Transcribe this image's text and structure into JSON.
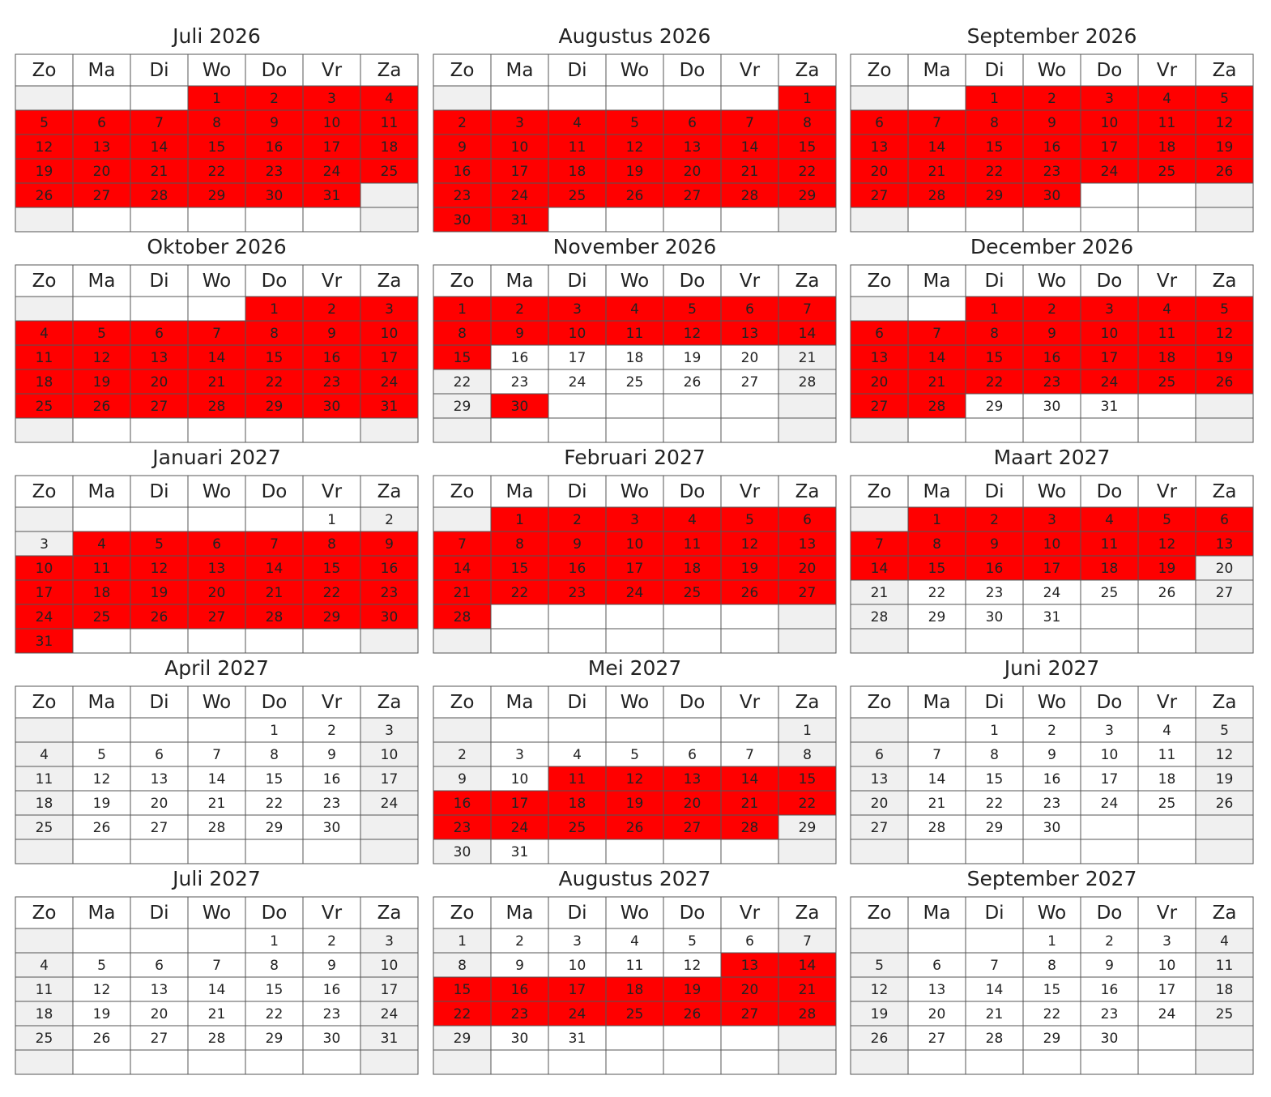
{
  "weekdays": [
    "Zo",
    "Ma",
    "Di",
    "Wo",
    "Do",
    "Vr",
    "Za"
  ],
  "months": [
    {
      "title": "Juli 2026",
      "booked": [
        [
          1,
          31
        ]
      ],
      "weeks": [
        [
          null,
          null,
          null,
          1,
          2,
          3,
          4
        ],
        [
          5,
          6,
          7,
          8,
          9,
          10,
          11
        ],
        [
          12,
          13,
          14,
          15,
          16,
          17,
          18
        ],
        [
          19,
          20,
          21,
          22,
          23,
          24,
          25
        ],
        [
          26,
          27,
          28,
          29,
          30,
          31,
          null
        ],
        [
          null,
          null,
          null,
          null,
          null,
          null,
          null
        ]
      ]
    },
    {
      "title": "Augustus 2026",
      "booked": [
        [
          1,
          31
        ]
      ],
      "weeks": [
        [
          null,
          null,
          null,
          null,
          null,
          null,
          1
        ],
        [
          2,
          3,
          4,
          5,
          6,
          7,
          8
        ],
        [
          9,
          10,
          11,
          12,
          13,
          14,
          15
        ],
        [
          16,
          17,
          18,
          19,
          20,
          21,
          22
        ],
        [
          23,
          24,
          25,
          26,
          27,
          28,
          29
        ],
        [
          30,
          31,
          null,
          null,
          null,
          null,
          null
        ]
      ]
    },
    {
      "title": "September 2026",
      "booked": [
        [
          1,
          30
        ]
      ],
      "weeks": [
        [
          null,
          null,
          1,
          2,
          3,
          4,
          5
        ],
        [
          6,
          7,
          8,
          9,
          10,
          11,
          12
        ],
        [
          13,
          14,
          15,
          16,
          17,
          18,
          19
        ],
        [
          20,
          21,
          22,
          23,
          24,
          25,
          26
        ],
        [
          27,
          28,
          29,
          30,
          null,
          null,
          null
        ],
        [
          null,
          null,
          null,
          null,
          null,
          null,
          null
        ]
      ]
    },
    {
      "title": "Oktober 2026",
      "booked": [
        [
          1,
          31
        ]
      ],
      "weeks": [
        [
          null,
          null,
          null,
          null,
          1,
          2,
          3
        ],
        [
          4,
          5,
          6,
          7,
          8,
          9,
          10
        ],
        [
          11,
          12,
          13,
          14,
          15,
          16,
          17
        ],
        [
          18,
          19,
          20,
          21,
          22,
          23,
          24
        ],
        [
          25,
          26,
          27,
          28,
          29,
          30,
          31
        ],
        [
          null,
          null,
          null,
          null,
          null,
          null,
          null
        ]
      ]
    },
    {
      "title": "November 2026",
      "booked": [
        [
          1,
          15
        ],
        [
          30,
          30
        ]
      ],
      "weeks": [
        [
          1,
          2,
          3,
          4,
          5,
          6,
          7
        ],
        [
          8,
          9,
          10,
          11,
          12,
          13,
          14
        ],
        [
          15,
          16,
          17,
          18,
          19,
          20,
          21
        ],
        [
          22,
          23,
          24,
          25,
          26,
          27,
          28
        ],
        [
          29,
          30,
          null,
          null,
          null,
          null,
          null
        ],
        [
          null,
          null,
          null,
          null,
          null,
          null,
          null
        ]
      ]
    },
    {
      "title": "December 2026",
      "booked": [
        [
          1,
          28
        ]
      ],
      "weeks": [
        [
          null,
          null,
          1,
          2,
          3,
          4,
          5
        ],
        [
          6,
          7,
          8,
          9,
          10,
          11,
          12
        ],
        [
          13,
          14,
          15,
          16,
          17,
          18,
          19
        ],
        [
          20,
          21,
          22,
          23,
          24,
          25,
          26
        ],
        [
          27,
          28,
          29,
          30,
          31,
          null,
          null
        ],
        [
          null,
          null,
          null,
          null,
          null,
          null,
          null
        ]
      ]
    },
    {
      "title": "Januari 2027",
      "booked": [
        [
          4,
          31
        ]
      ],
      "weeks": [
        [
          null,
          null,
          null,
          null,
          null,
          1,
          2
        ],
        [
          3,
          4,
          5,
          6,
          7,
          8,
          9
        ],
        [
          10,
          11,
          12,
          13,
          14,
          15,
          16
        ],
        [
          17,
          18,
          19,
          20,
          21,
          22,
          23
        ],
        [
          24,
          25,
          26,
          27,
          28,
          29,
          30
        ],
        [
          31,
          null,
          null,
          null,
          null,
          null,
          null
        ]
      ]
    },
    {
      "title": "Februari 2027",
      "booked": [
        [
          1,
          28
        ]
      ],
      "weeks": [
        [
          null,
          1,
          2,
          3,
          4,
          5,
          6
        ],
        [
          7,
          8,
          9,
          10,
          11,
          12,
          13
        ],
        [
          14,
          15,
          16,
          17,
          18,
          19,
          20
        ],
        [
          21,
          22,
          23,
          24,
          25,
          26,
          27
        ],
        [
          28,
          null,
          null,
          null,
          null,
          null,
          null
        ],
        [
          null,
          null,
          null,
          null,
          null,
          null,
          null
        ]
      ]
    },
    {
      "title": "Maart 2027",
      "booked": [
        [
          1,
          19
        ]
      ],
      "weeks": [
        [
          null,
          1,
          2,
          3,
          4,
          5,
          6
        ],
        [
          7,
          8,
          9,
          10,
          11,
          12,
          13
        ],
        [
          14,
          15,
          16,
          17,
          18,
          19,
          20
        ],
        [
          21,
          22,
          23,
          24,
          25,
          26,
          27
        ],
        [
          28,
          29,
          30,
          31,
          null,
          null,
          null
        ],
        [
          null,
          null,
          null,
          null,
          null,
          null,
          null
        ]
      ]
    },
    {
      "title": "April 2027",
      "booked": [],
      "weeks": [
        [
          null,
          null,
          null,
          null,
          1,
          2,
          3
        ],
        [
          4,
          5,
          6,
          7,
          8,
          9,
          10
        ],
        [
          11,
          12,
          13,
          14,
          15,
          16,
          17
        ],
        [
          18,
          19,
          20,
          21,
          22,
          23,
          24
        ],
        [
          25,
          26,
          27,
          28,
          29,
          30,
          null
        ],
        [
          null,
          null,
          null,
          null,
          null,
          null,
          null
        ]
      ]
    },
    {
      "title": "Mei 2027",
      "booked": [
        [
          11,
          28
        ]
      ],
      "weeks": [
        [
          null,
          null,
          null,
          null,
          null,
          null,
          1
        ],
        [
          2,
          3,
          4,
          5,
          6,
          7,
          8
        ],
        [
          9,
          10,
          11,
          12,
          13,
          14,
          15
        ],
        [
          16,
          17,
          18,
          19,
          20,
          21,
          22
        ],
        [
          23,
          24,
          25,
          26,
          27,
          28,
          29
        ],
        [
          30,
          31,
          null,
          null,
          null,
          null,
          null
        ]
      ]
    },
    {
      "title": "Juni 2027",
      "booked": [],
      "weeks": [
        [
          null,
          null,
          1,
          2,
          3,
          4,
          5
        ],
        [
          6,
          7,
          8,
          9,
          10,
          11,
          12
        ],
        [
          13,
          14,
          15,
          16,
          17,
          18,
          19
        ],
        [
          20,
          21,
          22,
          23,
          24,
          25,
          26
        ],
        [
          27,
          28,
          29,
          30,
          null,
          null,
          null
        ],
        [
          null,
          null,
          null,
          null,
          null,
          null,
          null
        ]
      ]
    },
    {
      "title": "Juli 2027",
      "booked": [],
      "weeks": [
        [
          null,
          null,
          null,
          null,
          1,
          2,
          3
        ],
        [
          4,
          5,
          6,
          7,
          8,
          9,
          10
        ],
        [
          11,
          12,
          13,
          14,
          15,
          16,
          17
        ],
        [
          18,
          19,
          20,
          21,
          22,
          23,
          24
        ],
        [
          25,
          26,
          27,
          28,
          29,
          30,
          31
        ],
        [
          null,
          null,
          null,
          null,
          null,
          null,
          null
        ]
      ]
    },
    {
      "title": "Augustus 2027",
      "booked": [
        [
          13,
          28
        ]
      ],
      "weeks": [
        [
          1,
          2,
          3,
          4,
          5,
          6,
          7
        ],
        [
          8,
          9,
          10,
          11,
          12,
          13,
          14
        ],
        [
          15,
          16,
          17,
          18,
          19,
          20,
          21
        ],
        [
          22,
          23,
          24,
          25,
          26,
          27,
          28
        ],
        [
          29,
          30,
          31,
          null,
          null,
          null,
          null
        ],
        [
          null,
          null,
          null,
          null,
          null,
          null,
          null
        ]
      ]
    },
    {
      "title": "September 2027",
      "booked": [],
      "weeks": [
        [
          null,
          null,
          null,
          1,
          2,
          3,
          4
        ],
        [
          5,
          6,
          7,
          8,
          9,
          10,
          11
        ],
        [
          12,
          13,
          14,
          15,
          16,
          17,
          18
        ],
        [
          19,
          20,
          21,
          22,
          23,
          24,
          25
        ],
        [
          26,
          27,
          28,
          29,
          30,
          null,
          null
        ],
        [
          null,
          null,
          null,
          null,
          null,
          null,
          null
        ]
      ]
    }
  ]
}
